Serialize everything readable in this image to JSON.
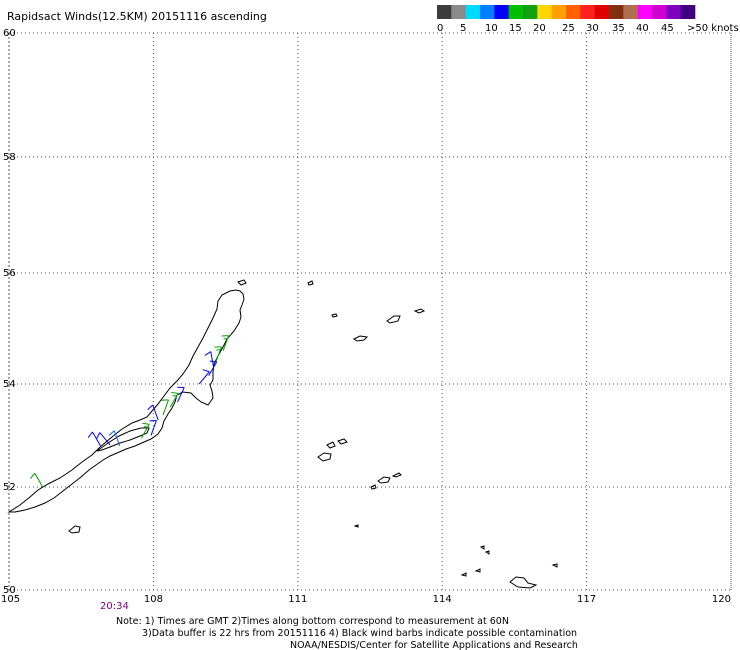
{
  "title": "Rapidsact Winds(12.5KM) 20151116 ascending",
  "legend": {
    "colors": [
      "#3c3c3c",
      "#8a8a8a",
      "#00d8ff",
      "#0080ff",
      "#0000ff",
      "#00c000",
      "#10a010",
      "#ffd800",
      "#ffa000",
      "#ff6000",
      "#ff2020",
      "#e00000",
      "#803010",
      "#b07050",
      "#ff00ff",
      "#d000d0",
      "#8000c0",
      "#400080"
    ],
    "tick_labels": [
      "0",
      "5",
      "10",
      "15",
      "20",
      "25",
      "30",
      "35",
      "40",
      "45",
      ">50 knots"
    ]
  },
  "map": {
    "lon_min": 105,
    "lon_max": 120,
    "lat_min": 50,
    "lat_max": 60,
    "lon_ticks": [
      "105",
      "108",
      "111",
      "114",
      "117",
      "120"
    ],
    "lat_ticks": [
      "60",
      "58",
      "56",
      "54",
      "52",
      "50"
    ],
    "time_label": "20:34"
  },
  "notes": {
    "line1": "Note: 1) Times are GMT 2)Times along bottom correspond to measurement at 60N",
    "line2": "3)Data buffer is 22 hrs from 20151116 4) Black wind barbs indicate possible contamination",
    "line3": "NOAA/NESDIS/Center for Satellite Applications and Research"
  },
  "wind_barbs": [
    {
      "lon": 105.7,
      "lat": 52.0,
      "dir": 330,
      "speed": 12,
      "color": "#00a000"
    },
    {
      "lon": 106.9,
      "lat": 52.8,
      "dir": 330,
      "speed": 14,
      "color": "#0000ff"
    },
    {
      "lon": 107.1,
      "lat": 52.82,
      "dir": 320,
      "speed": 12,
      "color": "#0000ff"
    },
    {
      "lon": 107.3,
      "lat": 52.8,
      "dir": 340,
      "speed": 10,
      "color": "#0060ff"
    },
    {
      "lon": 107.75,
      "lat": 52.95,
      "dir": 30,
      "speed": 16,
      "color": "#00a000"
    },
    {
      "lon": 107.95,
      "lat": 53.0,
      "dir": 20,
      "speed": 14,
      "color": "#0000ff"
    },
    {
      "lon": 108.1,
      "lat": 53.3,
      "dir": 340,
      "speed": 12,
      "color": "#0000ff"
    },
    {
      "lon": 108.2,
      "lat": 53.4,
      "dir": 20,
      "speed": 14,
      "color": "#00a000"
    },
    {
      "lon": 108.35,
      "lat": 53.55,
      "dir": 30,
      "speed": 16,
      "color": "#00a000"
    },
    {
      "lon": 108.5,
      "lat": 53.65,
      "dir": 25,
      "speed": 12,
      "color": "#0000ff"
    },
    {
      "lon": 108.95,
      "lat": 54.0,
      "dir": 40,
      "speed": 12,
      "color": "#0000ff"
    },
    {
      "lon": 109.15,
      "lat": 54.15,
      "dir": 30,
      "speed": 12,
      "color": "#0000ff"
    },
    {
      "lon": 109.3,
      "lat": 54.4,
      "dir": 20,
      "speed": 16,
      "color": "#00a000"
    },
    {
      "lon": 109.45,
      "lat": 54.6,
      "dir": 20,
      "speed": 18,
      "color": "#00a000"
    },
    {
      "lon": 109.25,
      "lat": 54.3,
      "dir": 350,
      "speed": 10,
      "color": "#0000ff"
    }
  ]
}
